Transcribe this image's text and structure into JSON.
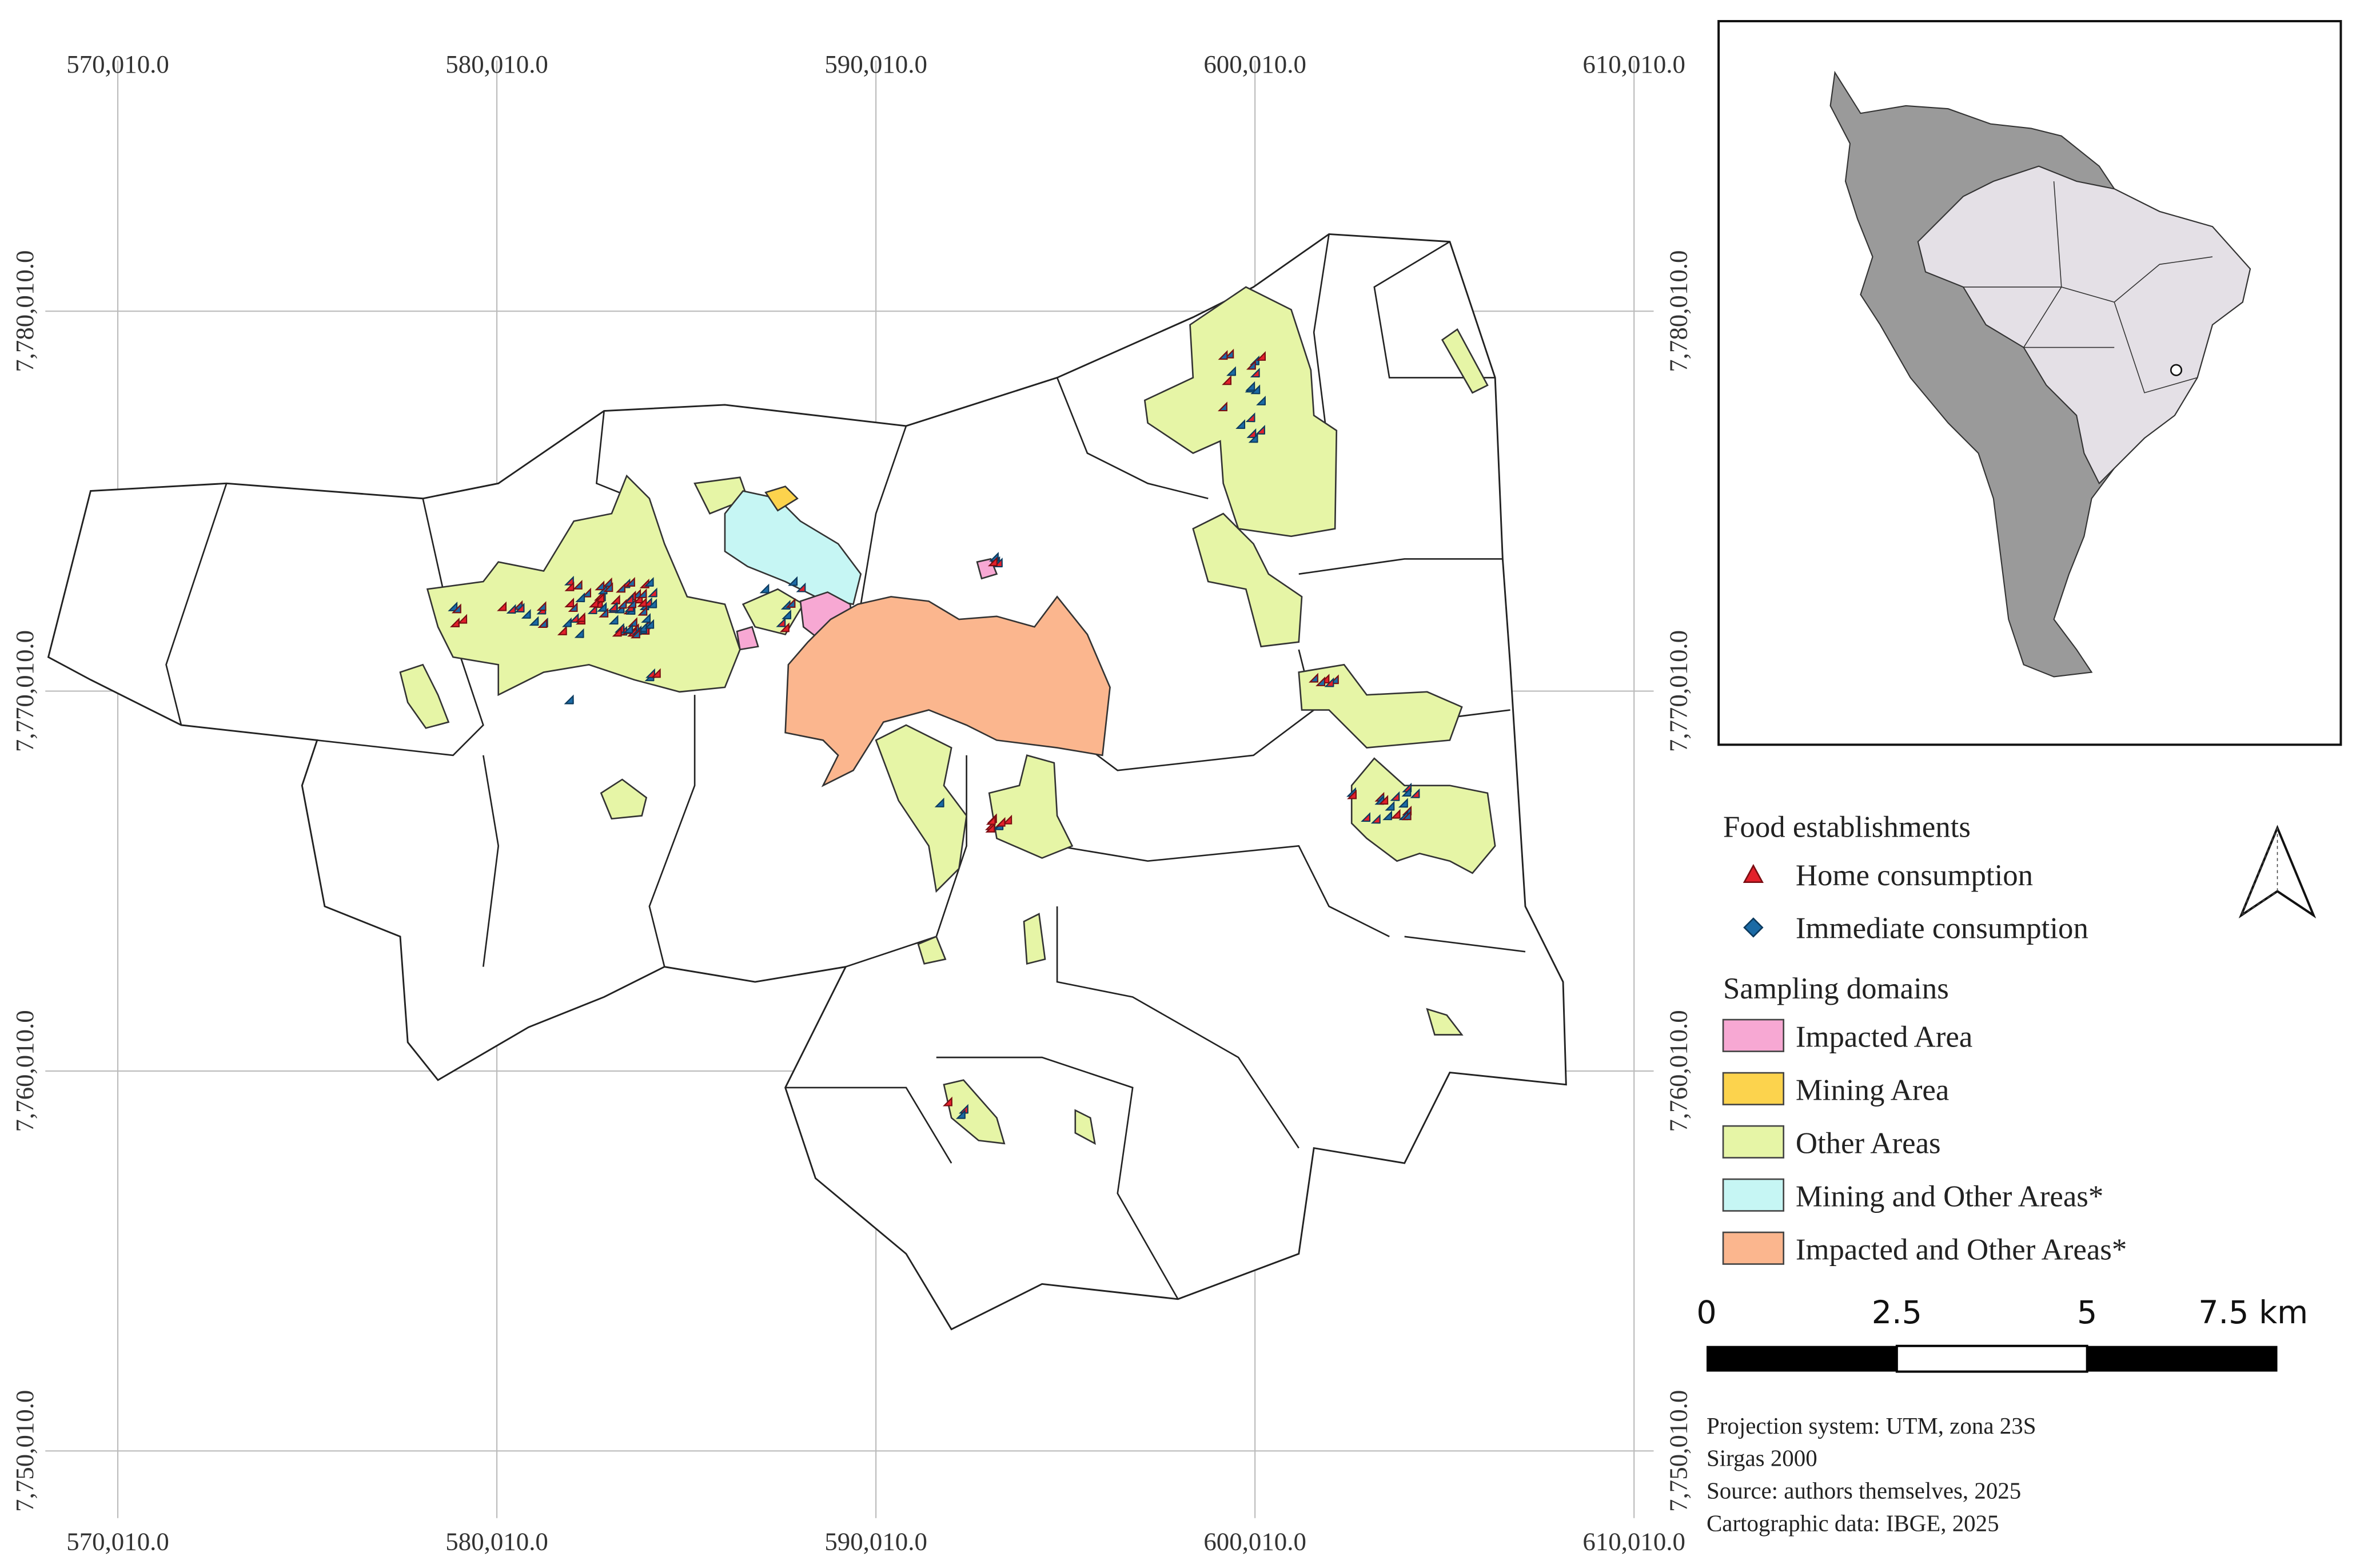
{
  "map": {
    "x_labels": [
      "570,010.0",
      "580,010.0",
      "590,010.0",
      "600,010.0",
      "610,010.0"
    ],
    "y_labels": [
      "7,780,010.0",
      "7,770,010.0",
      "7,760,010.0",
      "7,750,010.0"
    ],
    "legend": {
      "points_title": "Food establishments",
      "points": [
        {
          "label": "Home consumption",
          "color": "#e3202b"
        },
        {
          "label": "Immediate consumption",
          "color": "#1b6aa5"
        }
      ],
      "domains_title": "Sampling domains",
      "domains": [
        {
          "label": "Impacted Area",
          "color": "#f7a8d3"
        },
        {
          "label": "Mining Area",
          "color": "#fcd34d"
        },
        {
          "label": "Other Areas",
          "color": "#e6f5a6"
        },
        {
          "label": "Mining and Other Areas*",
          "color": "#c6f6f4"
        },
        {
          "label": "Impacted and Other Areas*",
          "color": "#fbb68e"
        }
      ]
    },
    "scale_bar": {
      "labels": [
        "0",
        "2.5",
        "5",
        "7.5 km"
      ]
    },
    "notes": [
      "Projection system: UTM, zona 23S",
      "Sirgas 2000",
      "Source: authors themselves, 2025",
      "Cartographic data: IBGE, 2025"
    ]
  }
}
